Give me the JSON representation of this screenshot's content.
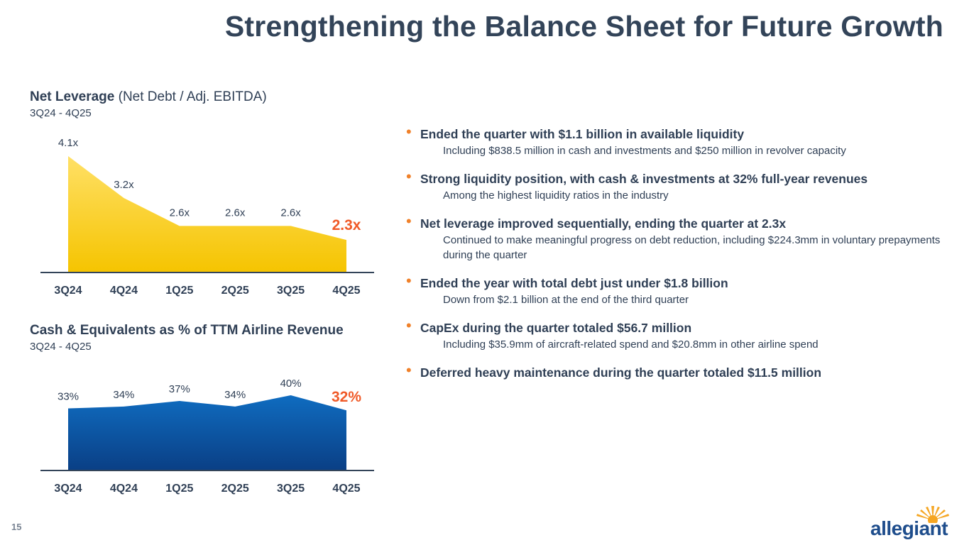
{
  "title": "Strengthening the Balance Sheet for Future Growth",
  "page_number": "15",
  "colors": {
    "title": "#334459",
    "text": "#2f3f55",
    "accent_orange": "#f0812a",
    "highlight_orange": "#f05a28",
    "yellow_top": "#ffe066",
    "yellow_bottom": "#f5c400",
    "blue_top": "#0f6cc0",
    "blue_bottom": "#0a3f85",
    "axis": "#334459",
    "logo_blue": "#1e4d8c",
    "logo_sun": "#f5a623"
  },
  "chart_data": [
    {
      "type": "area",
      "title_bold": "Net Leverage",
      "title_rest": " (Net Debt / Adj. EBITDA)",
      "subtitle": "3Q24 - 4Q25",
      "categories": [
        "3Q24",
        "4Q24",
        "1Q25",
        "2Q25",
        "3Q25",
        "4Q25"
      ],
      "values": [
        4.1,
        3.2,
        2.6,
        2.6,
        2.6,
        2.3
      ],
      "labels": [
        "4.1x",
        "3.2x",
        "2.6x",
        "2.6x",
        "2.6x",
        "2.3x"
      ],
      "highlight_last": true,
      "ylim": [
        1.6,
        4.1
      ]
    },
    {
      "type": "area",
      "title_bold": "Cash & Equivalents as % of TTM Airline Revenue",
      "title_rest": "",
      "subtitle": "3Q24 - 4Q25",
      "categories": [
        "3Q24",
        "4Q24",
        "1Q25",
        "2Q25",
        "3Q25",
        "4Q25"
      ],
      "values": [
        33,
        34,
        37,
        34,
        40,
        32
      ],
      "labels": [
        "33%",
        "34%",
        "37%",
        "34%",
        "40%",
        "32%"
      ],
      "highlight_last": true,
      "ylim": [
        0,
        40
      ]
    }
  ],
  "bullets": [
    {
      "main": "Ended the quarter with $1.1 billion in available liquidity",
      "detail": "Including $838.5 million in cash and investments and $250 million in revolver capacity"
    },
    {
      "main": "Strong liquidity position, with cash & investments at 32% full-year revenues",
      "detail": "Among the highest liquidity ratios in the industry"
    },
    {
      "main": "Net leverage improved sequentially, ending the quarter at 2.3x",
      "detail": "Continued to make meaningful progress on debt reduction, including $224.3mm in voluntary prepayments during the quarter"
    },
    {
      "main": "Ended the year with total debt just under $1.8 billion",
      "detail": "Down from $2.1 billion at the end of the third quarter"
    },
    {
      "main": "CapEx during the quarter totaled $56.7 million",
      "detail": "Including $35.9mm of aircraft-related spend and $20.8mm in other airline spend"
    },
    {
      "main": "Deferred heavy maintenance during the quarter totaled $11.5 million",
      "detail": ""
    }
  ],
  "logo": {
    "text": "allegiant",
    "icon": "sun-icon"
  }
}
